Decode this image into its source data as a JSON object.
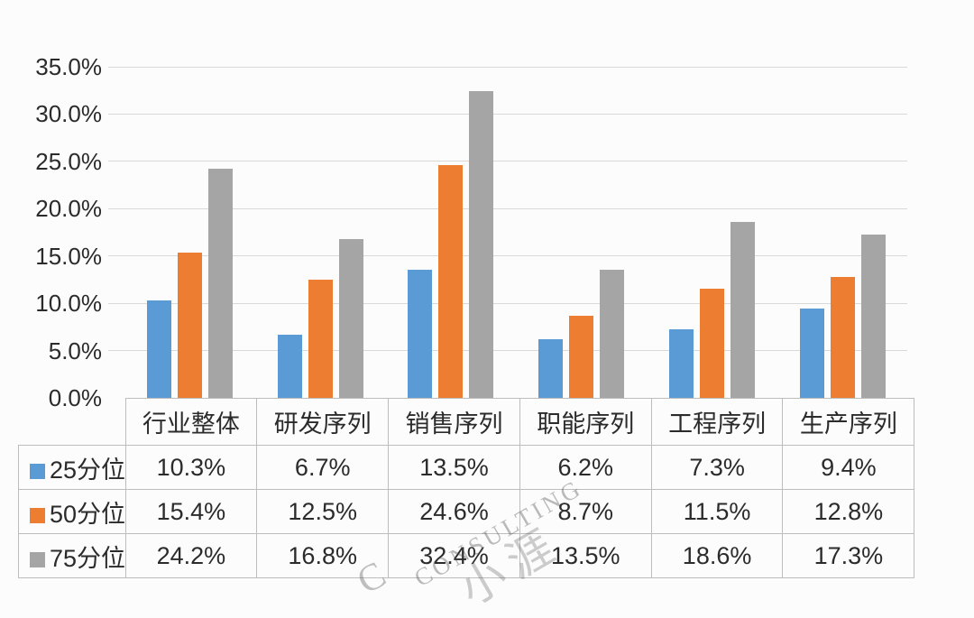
{
  "colors": {
    "series_blue": "#5B9BD5",
    "series_orange": "#ED7D31",
    "series_gray": "#A5A5A5",
    "gridline": "#D9D9D9",
    "table_border": "#BDBDBD",
    "text": "#2B2B2B",
    "background": "#FCFCFC"
  },
  "watermark": {
    "text": "CONSULTING",
    "leading_letter": "C",
    "cjk_approx": "小涯"
  },
  "chart_data": {
    "type": "bar",
    "title": "",
    "xlabel": "",
    "ylabel": "",
    "categories": [
      "行业整体",
      "研发序列",
      "销售序列",
      "职能序列",
      "工程序列",
      "生产序列"
    ],
    "series": [
      {
        "name": "25分位",
        "color": "#5B9BD5",
        "values": [
          10.3,
          6.7,
          13.5,
          6.2,
          7.3,
          9.4
        ]
      },
      {
        "name": "50分位",
        "color": "#ED7D31",
        "values": [
          15.4,
          12.5,
          24.6,
          8.7,
          11.5,
          12.8
        ]
      },
      {
        "name": "75分位",
        "color": "#A5A5A5",
        "values": [
          24.2,
          16.8,
          32.4,
          13.5,
          18.6,
          17.3
        ]
      }
    ],
    "value_suffix": "%",
    "value_decimals": 1,
    "y_axis": {
      "min": 0,
      "max": 35,
      "step": 5,
      "tick_labels": [
        "0.0%",
        "5.0%",
        "10.0%",
        "15.0%",
        "20.0%",
        "25.0%",
        "30.0%",
        "35.0%"
      ]
    },
    "grid": true,
    "legend_position": "data-table-left-column",
    "data_table_shown": true
  }
}
